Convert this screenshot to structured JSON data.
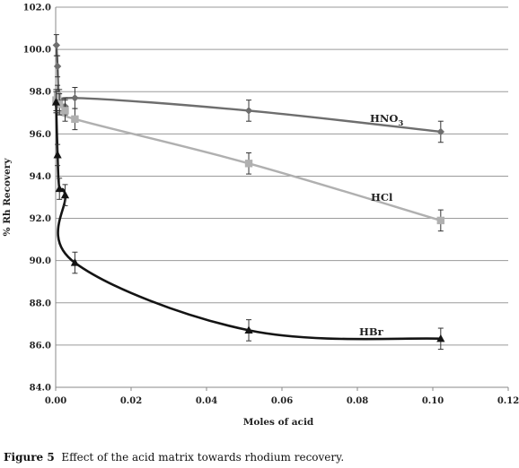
{
  "caption": {
    "label": "Figure 5",
    "text": "Effect of the acid matrix towards rhodium recovery."
  },
  "chart_data": {
    "type": "scatter",
    "xlabel": "Moles of acid",
    "ylabel": "% Rh Recovery",
    "xlim": [
      0,
      0.12
    ],
    "ylim": [
      84.0,
      102.0
    ],
    "xticks": [
      "0.00",
      "0.02",
      "0.04",
      "0.06",
      "0.08",
      "0.10",
      "0.12"
    ],
    "yticks": [
      "84.0",
      "86.0",
      "88.0",
      "90.0",
      "92.0",
      "94.0",
      "96.0",
      "98.0",
      "100.0",
      "102.0"
    ],
    "grid": "horizontal",
    "series": [
      {
        "label_main": "HNO",
        "label_sub": "3",
        "color": "#6e6e6e",
        "marker": "diamond",
        "x": [
          0.0002,
          0.0005,
          0.001,
          0.0025,
          0.0051,
          0.0512,
          0.1021
        ],
        "y": [
          100.2,
          99.2,
          97.6,
          97.3,
          97.7,
          97.1,
          96.1
        ],
        "err": [
          0.5,
          0.5,
          0.5,
          0.4,
          0.5,
          0.5,
          0.5
        ]
      },
      {
        "label_main": "HCl",
        "label_sub": "",
        "color": "#b0b0b0",
        "marker": "square",
        "x": [
          0.0001,
          0.0005,
          0.001,
          0.0025,
          0.0051,
          0.0512,
          0.1021
        ],
        "y": [
          97.6,
          97.8,
          97.4,
          97.1,
          96.7,
          94.6,
          91.9
        ],
        "err": [
          0.5,
          0.5,
          0.5,
          0.5,
          0.5,
          0.5,
          0.5
        ]
      },
      {
        "label_main": "HBr",
        "label_sub": "",
        "color": "#141414",
        "marker": "triangle",
        "x": [
          0.0001,
          0.0005,
          0.001,
          0.0025,
          0.0051,
          0.0512,
          0.1021
        ],
        "y": [
          97.5,
          95.0,
          93.4,
          93.1,
          89.9,
          86.7,
          86.3
        ],
        "err": [
          0.5,
          0.5,
          0.5,
          0.5,
          0.5,
          0.5,
          0.5
        ]
      }
    ]
  }
}
